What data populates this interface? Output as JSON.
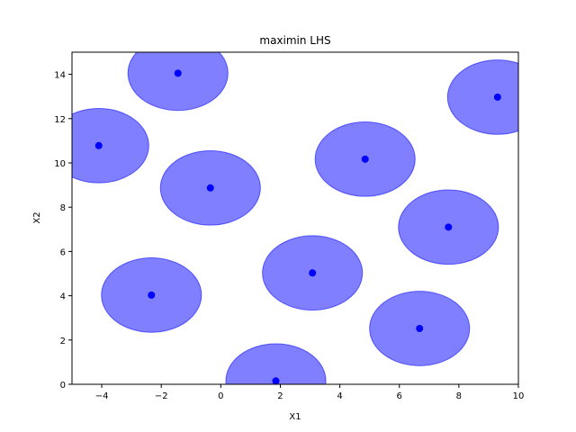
{
  "chart_data": {
    "type": "scatter",
    "title": "maximin LHS",
    "xlabel": "X1",
    "ylabel": "X2",
    "xlim": [
      -5,
      10
    ],
    "ylim": [
      0,
      15
    ],
    "x_ticks": [
      -4,
      -2,
      0,
      2,
      4,
      6,
      8,
      10
    ],
    "y_ticks": [
      0,
      2,
      4,
      6,
      8,
      10,
      12,
      14
    ],
    "grid": false,
    "circle_radius": 1.68,
    "circle_color": "#0000ff",
    "circle_alpha": 0.5,
    "point_color": "#0000ff",
    "points": [
      {
        "x": -1.44,
        "y": 14.05
      },
      {
        "x": -4.1,
        "y": 10.78
      },
      {
        "x": -0.35,
        "y": 8.87
      },
      {
        "x": 4.85,
        "y": 10.17
      },
      {
        "x": 9.3,
        "y": 12.97
      },
      {
        "x": 7.65,
        "y": 7.1
      },
      {
        "x": 3.08,
        "y": 5.03
      },
      {
        "x": -2.33,
        "y": 4.03
      },
      {
        "x": 6.68,
        "y": 2.52
      },
      {
        "x": 1.85,
        "y": 0.15
      }
    ]
  }
}
